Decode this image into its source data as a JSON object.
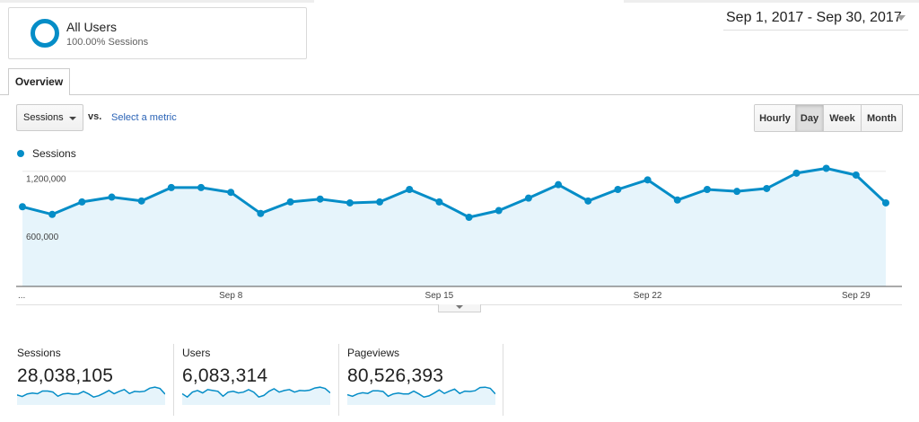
{
  "segment": {
    "name": "All Users",
    "subtitle": "100.00% Sessions"
  },
  "date_range": {
    "label": "Sep 1, 2017 - Sep 30, 2017"
  },
  "tabs": [
    {
      "label": "Overview"
    }
  ],
  "metric_selector": {
    "selected": "Sessions",
    "vs_label": "vs.",
    "select_metric_link": "Select a metric"
  },
  "granularity": {
    "options": [
      "Hourly",
      "Day",
      "Week",
      "Month"
    ],
    "active": "Day"
  },
  "legend": {
    "label": "Sessions"
  },
  "colors": {
    "series": "#058dc7",
    "area": "#e6f4fb"
  },
  "chart_data": {
    "type": "area",
    "x": [
      "Sep 1",
      "Sep 2",
      "Sep 3",
      "Sep 4",
      "Sep 5",
      "Sep 6",
      "Sep 7",
      "Sep 8",
      "Sep 9",
      "Sep 10",
      "Sep 11",
      "Sep 12",
      "Sep 13",
      "Sep 14",
      "Sep 15",
      "Sep 16",
      "Sep 17",
      "Sep 18",
      "Sep 19",
      "Sep 20",
      "Sep 21",
      "Sep 22",
      "Sep 23",
      "Sep 24",
      "Sep 25",
      "Sep 26",
      "Sep 27",
      "Sep 28",
      "Sep 29",
      "Sep 30"
    ],
    "series": [
      {
        "name": "Sessions",
        "values": [
          830000,
          750000,
          880000,
          930000,
          890000,
          1030000,
          1030000,
          980000,
          760000,
          880000,
          910000,
          870000,
          880000,
          1010000,
          880000,
          720000,
          790000,
          920000,
          1060000,
          890000,
          1010000,
          1110000,
          900000,
          1010000,
          990000,
          1020000,
          1180000,
          1230000,
          1160000,
          870000
        ]
      }
    ],
    "x_tick_labels": [
      "...",
      "Sep 8",
      "Sep 15",
      "Sep 22",
      "Sep 29"
    ],
    "y_tick_labels": [
      "1,200,000",
      "600,000"
    ],
    "y_ticks": [
      1200000,
      600000
    ],
    "ylim": [
      0,
      1300000
    ],
    "grid": true
  },
  "scorecards": [
    {
      "label": "Sessions",
      "value": "28,038,105",
      "sparkline": [
        830000,
        750000,
        880000,
        930000,
        890000,
        1030000,
        1030000,
        980000,
        760000,
        880000,
        910000,
        870000,
        880000,
        1010000,
        880000,
        720000,
        790000,
        920000,
        1060000,
        890000,
        1010000,
        1110000,
        900000,
        1010000,
        990000,
        1020000,
        1180000,
        1230000,
        1160000,
        870000
      ]
    },
    {
      "label": "Users",
      "value": "6,083,314",
      "sparkline": [
        190000,
        170000,
        200000,
        210000,
        195000,
        215000,
        210000,
        205000,
        175000,
        200000,
        205000,
        195000,
        200000,
        215000,
        200000,
        170000,
        180000,
        205000,
        220000,
        200000,
        210000,
        215000,
        200000,
        210000,
        208000,
        212000,
        225000,
        230000,
        222000,
        195000
      ]
    },
    {
      "label": "Pageviews",
      "value": "80,526,393",
      "sparkline": [
        2400000,
        2200000,
        2500000,
        2650000,
        2550000,
        2900000,
        2900000,
        2800000,
        2200000,
        2500000,
        2600000,
        2500000,
        2500000,
        2850000,
        2500000,
        2100000,
        2250000,
        2600000,
        3000000,
        2550000,
        2850000,
        3100000,
        2550000,
        2850000,
        2800000,
        2900000,
        3300000,
        3350000,
        3200000,
        2500000
      ]
    }
  ]
}
